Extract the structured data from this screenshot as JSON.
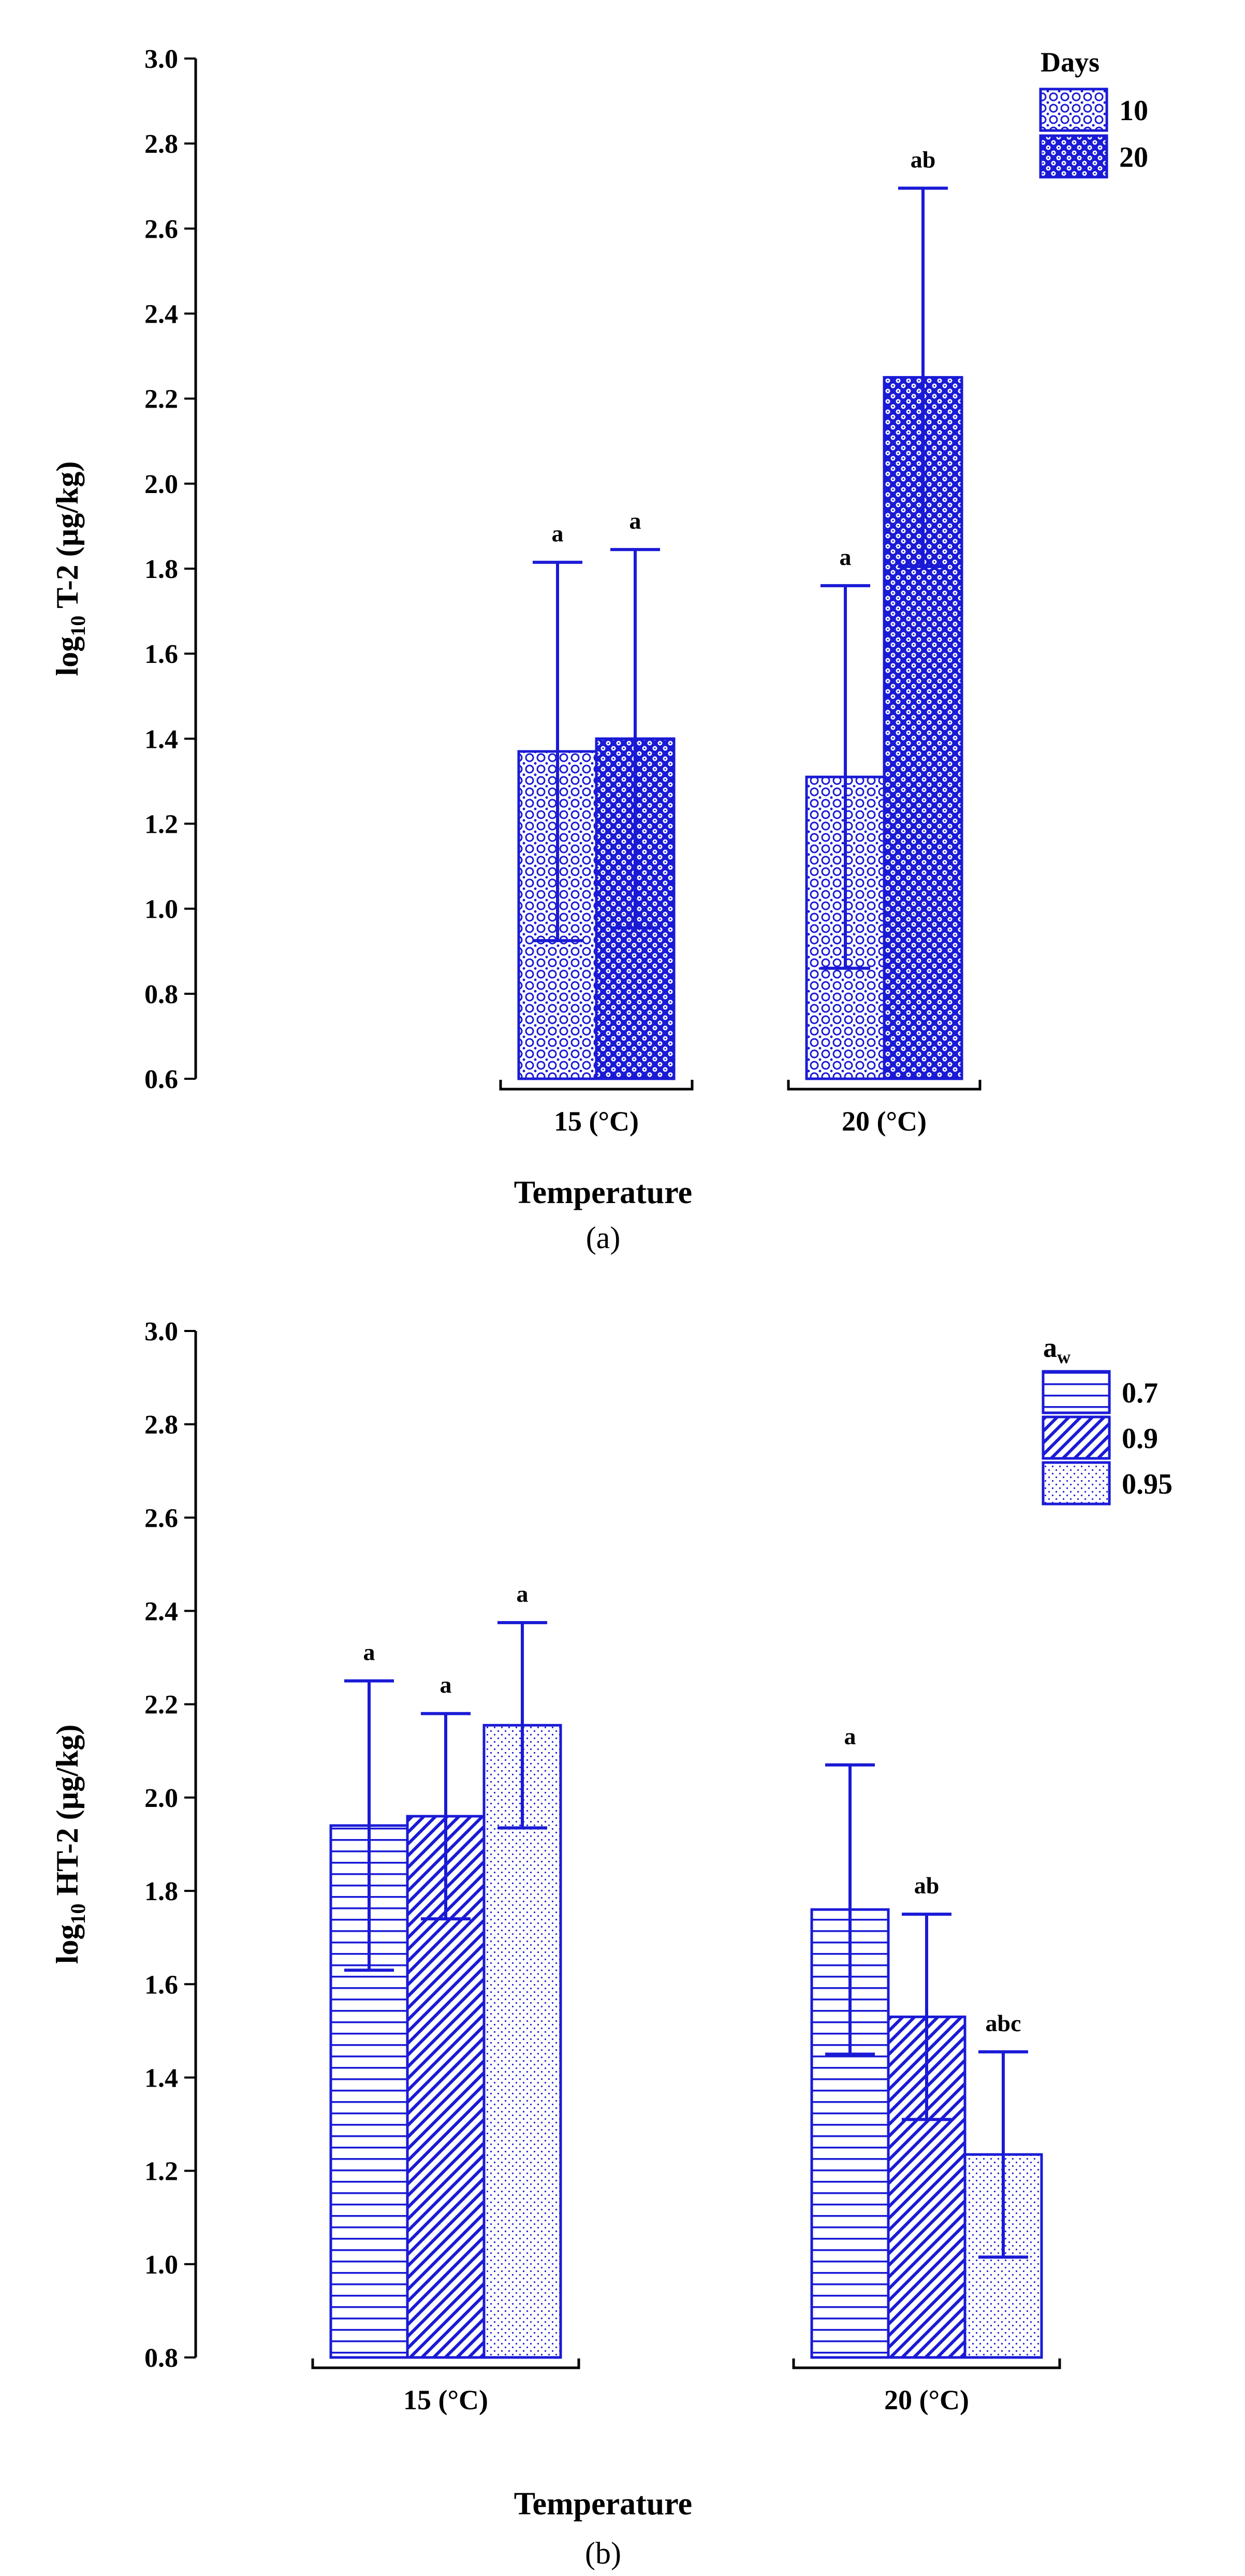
{
  "colors": {
    "accent": "#1a1ad6",
    "axis": "#000000",
    "background": "#ffffff"
  },
  "chart_data": [
    {
      "type": "bar",
      "panel_label": "a",
      "title": "",
      "xlabel": "Temperature",
      "ylabel": "log10 T-2 (µg/kg)",
      "ylabel_main": "log",
      "ylabel_sub": "10",
      "ylabel_rest": " T-2 (µg/kg)",
      "ylim": [
        0.6,
        3.0
      ],
      "yticks": [
        "0.6",
        "0.8",
        "1.0",
        "1.2",
        "1.4",
        "1.6",
        "1.8",
        "2.0",
        "2.2",
        "2.4",
        "2.6",
        "2.8",
        "3.0"
      ],
      "categories": [
        "15 (°C)",
        "20 (°C)"
      ],
      "legend": {
        "title": "Days",
        "title_main": "Days",
        "title_sub": "",
        "placement": "top-right"
      },
      "series": [
        {
          "name": "10",
          "pattern": "rings",
          "values": [
            1.37,
            1.31
          ],
          "err": [
            0.445,
            0.45
          ],
          "labels": [
            "a",
            "a"
          ]
        },
        {
          "name": "20",
          "pattern": "dense-dots",
          "values": [
            1.4,
            2.25
          ],
          "err": [
            0.445,
            0.445
          ],
          "labels": [
            "a",
            "ab"
          ]
        }
      ]
    },
    {
      "type": "bar",
      "panel_label": "b",
      "title": "",
      "xlabel": "Temperature",
      "ylabel": "log10 HT-2 (µg/kg)",
      "ylabel_main": "log",
      "ylabel_sub": "10",
      "ylabel_rest": " HT-2 (µg/kg)",
      "ylim": [
        0.8,
        3.0
      ],
      "yticks": [
        "0.8",
        "1.0",
        "1.2",
        "1.4",
        "1.6",
        "1.8",
        "2.0",
        "2.2",
        "2.4",
        "2.6",
        "2.8",
        "3.0"
      ],
      "categories": [
        "15 (°C)",
        "20 (°C)"
      ],
      "legend": {
        "title": "aw",
        "title_main": "a",
        "title_sub": "w",
        "placement": "top-right"
      },
      "series": [
        {
          "name": "0.7",
          "pattern": "horizontal-lines",
          "values": [
            1.94,
            1.76
          ],
          "err": [
            0.31,
            0.31
          ],
          "labels": [
            "a",
            "a"
          ]
        },
        {
          "name": "0.9",
          "pattern": "diagonal-lines",
          "values": [
            1.96,
            1.53
          ],
          "err": [
            0.22,
            0.22
          ],
          "labels": [
            "a",
            "ab"
          ]
        },
        {
          "name": "0.95",
          "pattern": "fine-dots",
          "values": [
            2.155,
            1.235
          ],
          "err": [
            0.22,
            0.22
          ],
          "labels": [
            "a",
            "abc"
          ]
        }
      ]
    }
  ],
  "panel_labels": [
    "(a)",
    "(b)"
  ],
  "panel_letters": [
    "a",
    "b"
  ]
}
